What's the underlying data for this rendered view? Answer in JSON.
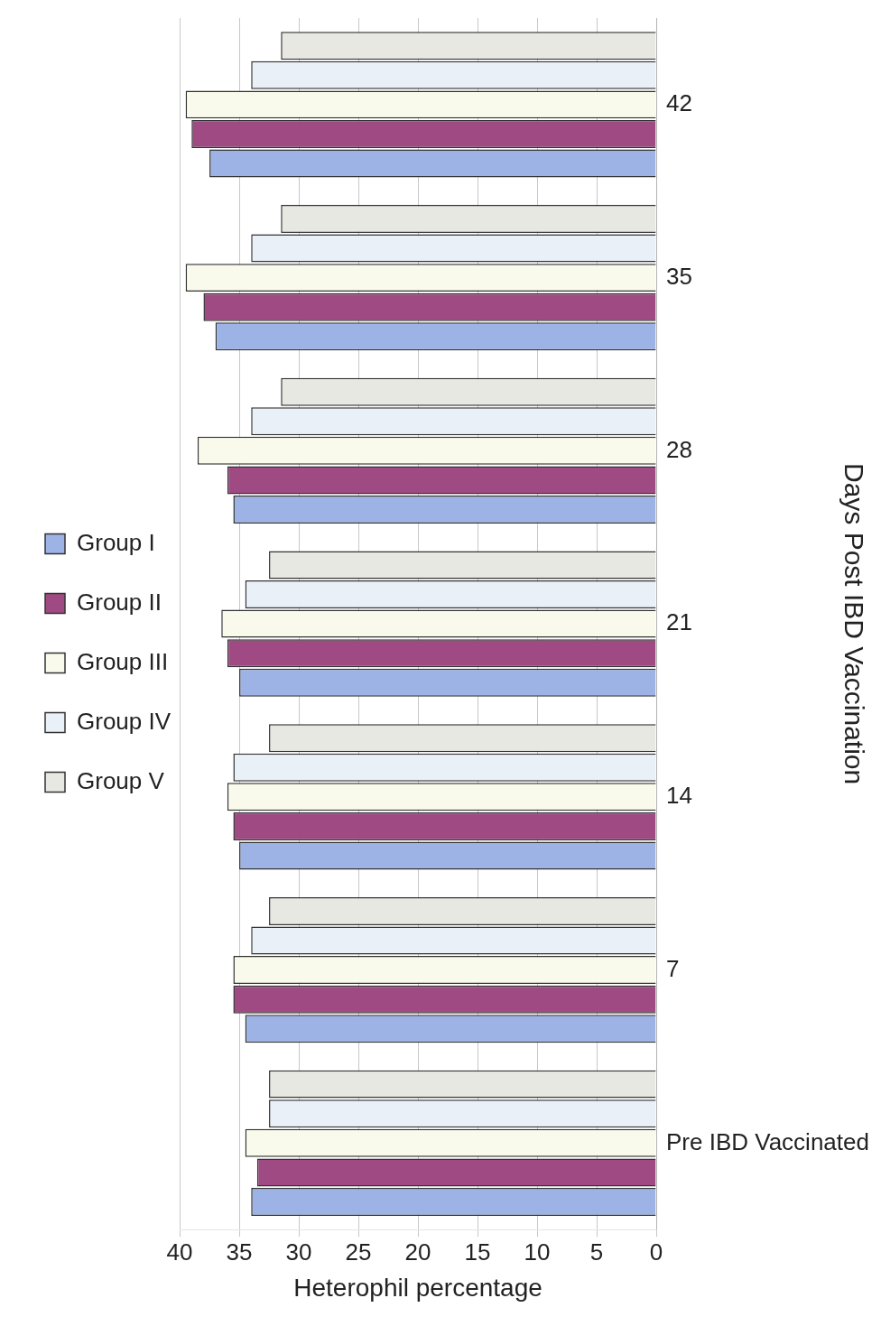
{
  "chart_data": {
    "type": "bar",
    "orientation": "horizontal",
    "xlabel": "Heterophil percentage",
    "ylabel": "Days Post IBD Vaccination",
    "categories": [
      "42",
      "35",
      "28",
      "21",
      "14",
      "7",
      "Pre IBD Vaccinated"
    ],
    "series": [
      {
        "name": "Group I",
        "color": "#9db3e6",
        "values": [
          37.5,
          37,
          35.5,
          35,
          35,
          34.5,
          34
        ]
      },
      {
        "name": "Group II",
        "color": "#a04a84",
        "values": [
          39,
          38,
          36,
          36,
          35.5,
          35.5,
          33.5
        ]
      },
      {
        "name": "Group III",
        "color": "#fafaec",
        "values": [
          39.5,
          39.5,
          38.5,
          36.5,
          36,
          35.5,
          34.5
        ]
      },
      {
        "name": "Group IV",
        "color": "#e9f0f8",
        "values": [
          34,
          34,
          34,
          34.5,
          35.5,
          34,
          32.5
        ]
      },
      {
        "name": "Group V",
        "color": "#e8e8e2",
        "values": [
          31.5,
          31.5,
          31.5,
          32.5,
          32.5,
          32.5,
          32.5
        ]
      }
    ],
    "xlim": [
      40,
      0
    ],
    "xticks": [
      0,
      5,
      10,
      15,
      20,
      25,
      30,
      35,
      40
    ],
    "grid": "x",
    "legend": "left"
  }
}
